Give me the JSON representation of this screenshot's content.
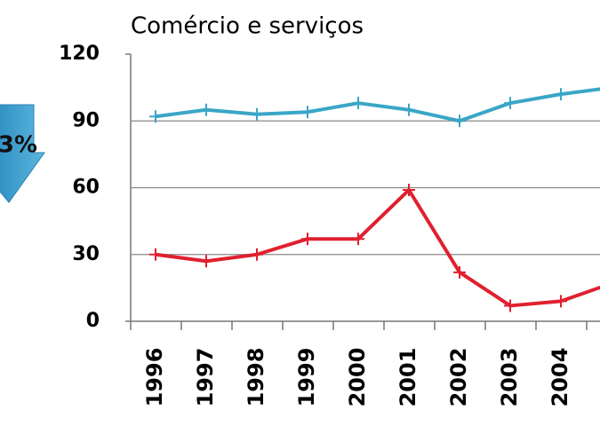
{
  "chart_data": {
    "type": "line",
    "title": "Comércio e serviços",
    "annotation": "3%",
    "categories": [
      "1996",
      "1997",
      "1998",
      "1999",
      "2000",
      "2001",
      "2002",
      "2003",
      "2004",
      null
    ],
    "series": [
      {
        "color": "#3aa6c6",
        "values": [
          92,
          95,
          93,
          94,
          98,
          95,
          90,
          98,
          102,
          105
        ]
      },
      {
        "color": "#e0202f",
        "values": [
          30,
          27,
          30,
          37,
          37,
          59,
          22,
          7,
          9,
          17
        ]
      }
    ],
    "ylim": [
      0,
      120
    ],
    "yticks": [
      0,
      30,
      60,
      90,
      120
    ],
    "grid": true
  }
}
